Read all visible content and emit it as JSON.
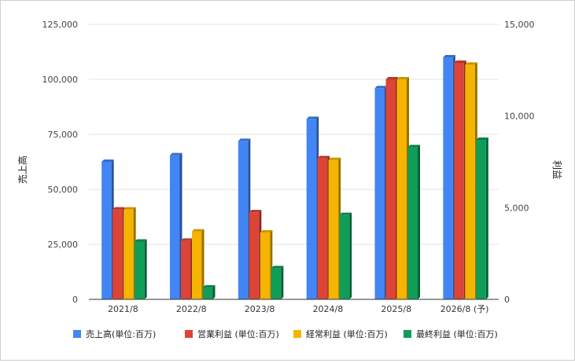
{
  "chart_data": {
    "type": "bar",
    "categories": [
      "2021/8",
      "2022/8",
      "2023/8",
      "2024/8",
      "2025/8",
      "2026/8 (予)"
    ],
    "left_axis": {
      "label": "売上高",
      "min": 0,
      "max": 125000,
      "ticks": [
        "0",
        "25,000",
        "50,000",
        "75,000",
        "100,000",
        "125,000"
      ],
      "tick_values": [
        0,
        25000,
        50000,
        75000,
        100000,
        125000
      ]
    },
    "right_axis": {
      "label": "利益",
      "min": 0,
      "max": 15000,
      "ticks": [
        "0",
        "5,000",
        "10,000",
        "15,000"
      ],
      "tick_values": [
        0,
        5000,
        10000,
        15000
      ]
    },
    "series": [
      {
        "name": "売上高(単位:百万)",
        "axis": "left",
        "color": "#4285f4",
        "values": [
          62500,
          65500,
          72000,
          82000,
          96000,
          110000
        ]
      },
      {
        "name": "営業利益 (単位:百万)",
        "axis": "right",
        "color": "#db4437",
        "values": [
          4900,
          3200,
          4750,
          7700,
          12000,
          12900
        ]
      },
      {
        "name": "経常利益 (単位:百万)",
        "axis": "right",
        "color": "#f4b400",
        "values": [
          4900,
          3700,
          3650,
          7600,
          12000,
          12800
        ]
      },
      {
        "name": "最終利益 (単位:百万)",
        "axis": "right",
        "color": "#0f9d58",
        "values": [
          3150,
          650,
          1700,
          4600,
          8300,
          8700
        ]
      }
    ],
    "grid": true,
    "legend_position": "bottom"
  }
}
